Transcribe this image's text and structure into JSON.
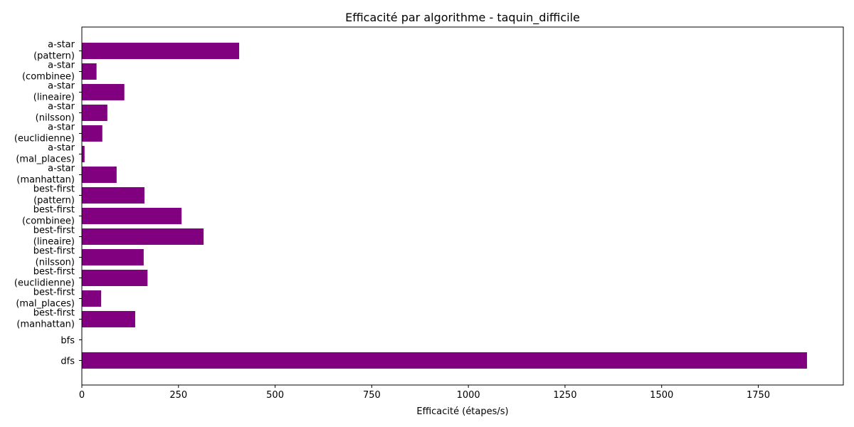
{
  "chart_data": {
    "type": "bar",
    "orientation": "horizontal",
    "title": "Efficacité par algorithme - taquin_difficile",
    "xlabel": "Efficacité (étapes/s)",
    "ylabel": "",
    "xlim": [
      0,
      1970
    ],
    "xticks": [
      0,
      250,
      500,
      750,
      1000,
      1250,
      1500,
      1750
    ],
    "grid": false,
    "color": "#800080",
    "categories": [
      [
        "dfs"
      ],
      [
        "bfs"
      ],
      [
        "best-first",
        "(manhattan)"
      ],
      [
        "best-first",
        "(mal_places)"
      ],
      [
        "best-first",
        "(euclidienne)"
      ],
      [
        "best-first",
        "(nilsson)"
      ],
      [
        "best-first",
        "(lineaire)"
      ],
      [
        "best-first",
        "(combinee)"
      ],
      [
        "best-first",
        "(pattern)"
      ],
      [
        "a-star",
        "(manhattan)"
      ],
      [
        "a-star",
        "(mal_places)"
      ],
      [
        "a-star",
        "(euclidienne)"
      ],
      [
        "a-star",
        "(nilsson)"
      ],
      [
        "a-star",
        "(lineaire)"
      ],
      [
        "a-star",
        "(combinee)"
      ],
      [
        "a-star",
        "(pattern)"
      ]
    ],
    "values": [
      1876,
      0,
      138,
      50,
      170,
      160,
      315,
      258,
      162,
      90,
      7,
      53,
      66,
      110,
      38,
      407
    ]
  }
}
